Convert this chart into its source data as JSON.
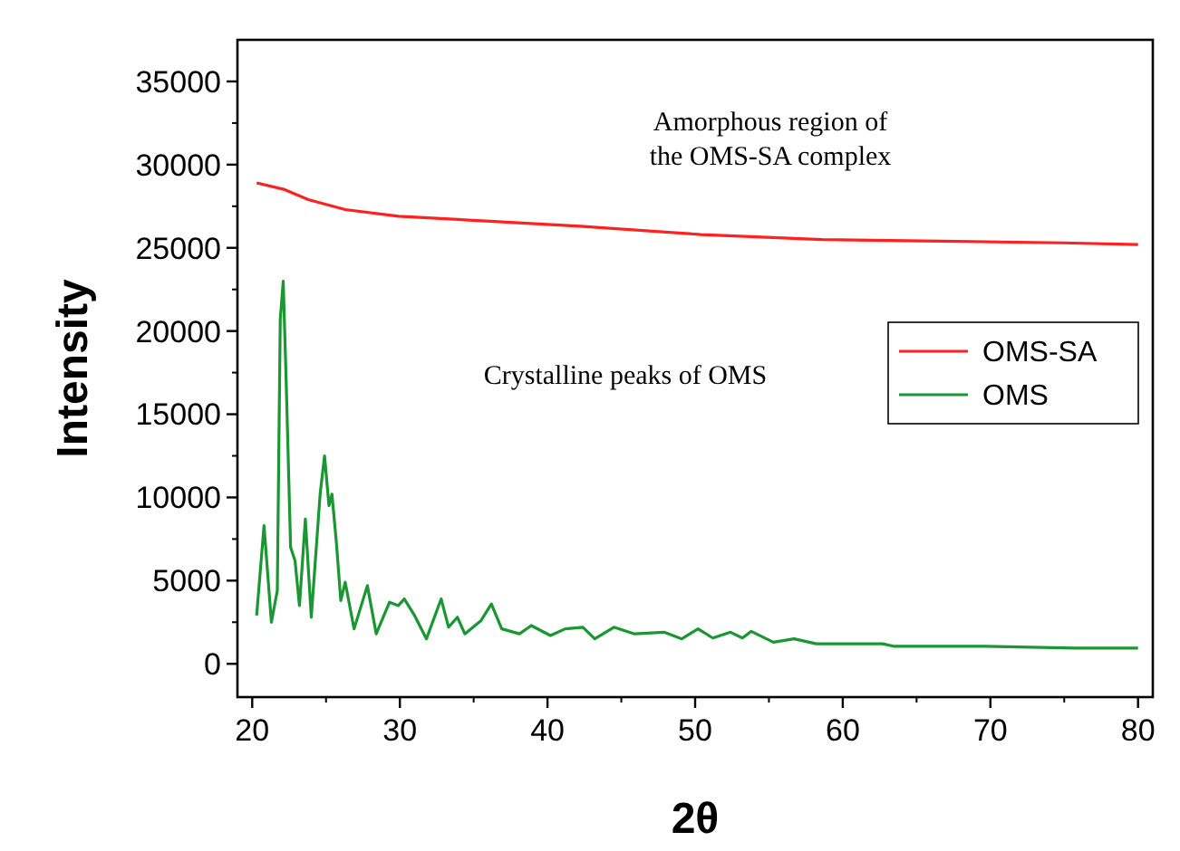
{
  "chart_data": {
    "type": "line",
    "xlabel": "2θ",
    "ylabel": "Intensity",
    "xlim": [
      19,
      81
    ],
    "ylim": [
      -2000,
      37500
    ],
    "xticks": [
      20,
      30,
      40,
      50,
      60,
      70,
      80
    ],
    "yticks": [
      0,
      5000,
      10000,
      15000,
      20000,
      25000,
      30000,
      35000
    ],
    "annotations": [
      "Amorphous region of\nthe OMS-SA complex",
      "Crystalline peaks of OMS"
    ],
    "legend": "right",
    "grid": false,
    "series": [
      {
        "name": "OMS-SA",
        "color": "#ff2020",
        "x": [
          20.3,
          22.2,
          23.8,
          26.3,
          29.9,
          36.1,
          42.2,
          50.4,
          58.6,
          66.7,
          74.9,
          80
        ],
        "values": [
          28900,
          28500,
          27900,
          27300,
          26900,
          26600,
          26300,
          25800,
          25500,
          25400,
          25300,
          25200
        ]
      },
      {
        "name": "OMS",
        "color": "#1a9632",
        "x": [
          20.3,
          20.8,
          21.3,
          21.7,
          21.9,
          22.1,
          22.3,
          22.6,
          22.9,
          23.2,
          23.6,
          24.0,
          24.6,
          24.9,
          25.2,
          25.4,
          25.7,
          26.0,
          26.3,
          26.9,
          27.8,
          28.4,
          29.3,
          29.9,
          30.3,
          31.0,
          31.8,
          32.8,
          33.3,
          33.9,
          34.4,
          35.5,
          36.2,
          36.9,
          38.1,
          38.9,
          40.2,
          41.2,
          42.4,
          43.2,
          44.5,
          45.9,
          47.9,
          49.1,
          50.2,
          51.2,
          52.4,
          53.2,
          53.8,
          55.3,
          56.7,
          58.2,
          62.7,
          63.5,
          69.6,
          75.7,
          80
        ],
        "values": [
          2900,
          8300,
          2500,
          4400,
          20700,
          23000,
          17000,
          7000,
          6200,
          3500,
          8700,
          2800,
          10200,
          12500,
          9500,
          10200,
          7300,
          3800,
          4900,
          2100,
          4700,
          1800,
          3700,
          3500,
          3900,
          2900,
          1500,
          3900,
          2200,
          2800,
          1800,
          2600,
          3600,
          2100,
          1800,
          2300,
          1700,
          2100,
          2200,
          1500,
          2200,
          1800,
          1900,
          1500,
          2100,
          1550,
          1900,
          1550,
          1950,
          1300,
          1500,
          1200,
          1200,
          1050,
          1050,
          950,
          950
        ]
      }
    ]
  }
}
